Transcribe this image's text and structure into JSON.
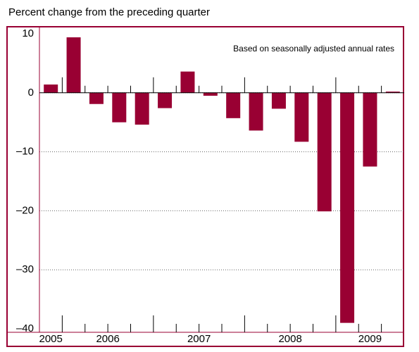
{
  "chart_data": {
    "type": "bar",
    "title": "Percent change from the preceding quarter",
    "annotation": "Based on seasonally adjusted annual rates",
    "categories": [
      "2005",
      "2006",
      null,
      null,
      null,
      "2007",
      null,
      null,
      null,
      "2008",
      null,
      null,
      null,
      "2009",
      null,
      null
    ],
    "values": [
      1.4,
      9.4,
      -1.9,
      -5.0,
      -5.4,
      -2.6,
      3.6,
      -0.5,
      -4.3,
      -6.4,
      -2.7,
      -8.3,
      -20.1,
      -39.0,
      -12.5,
      0.2
    ],
    "color": "#990033",
    "ylim": [
      -40,
      10
    ],
    "yticks": [
      {
        "value": -40,
        "label": "–40"
      },
      {
        "value": -30,
        "label": "–30"
      },
      {
        "value": -20,
        "label": "–20"
      },
      {
        "value": -10,
        "label": "–10"
      },
      0,
      10
    ],
    "grid": true
  }
}
